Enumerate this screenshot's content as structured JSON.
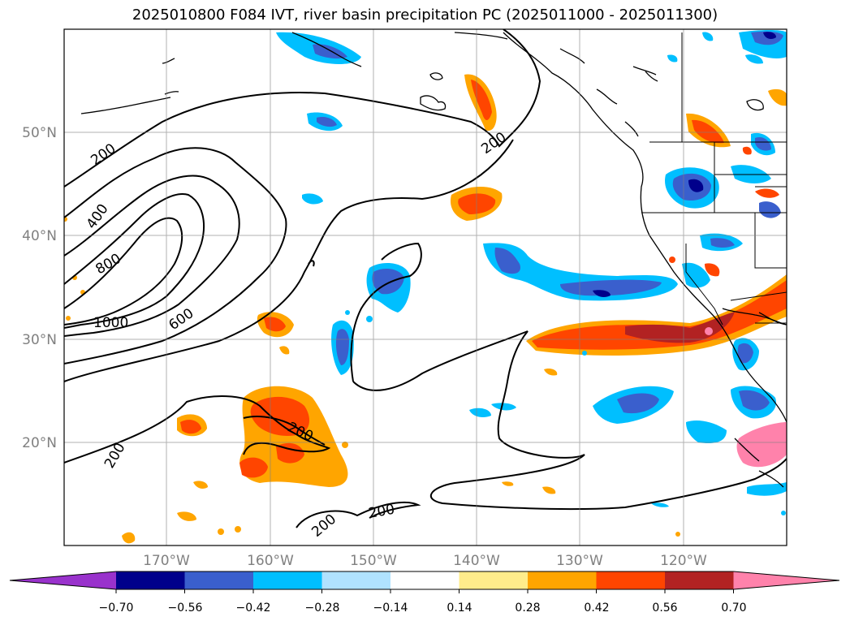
{
  "title": "2025010800 F084 IVT, river basin precipitation PC (2025011000 - 2025011300)",
  "map": {
    "lat_ticks": [
      "50°N",
      "40°N",
      "30°N",
      "20°N"
    ],
    "lon_ticks": [
      "170°W",
      "160°W",
      "150°W",
      "140°W",
      "130°W",
      "120°W"
    ],
    "contour_labels": [
      "200",
      "400",
      "800",
      "1000",
      "600",
      "200",
      "200",
      "200",
      "200",
      "200"
    ]
  },
  "colorbar": {
    "tick_labels": [
      "−0.70",
      "−0.56",
      "−0.42",
      "−0.28",
      "−0.14",
      "0.14",
      "0.28",
      "0.42",
      "0.56",
      "0.70"
    ],
    "colors": [
      "#9932cc",
      "#00008b",
      "#3a5fcd",
      "#00bfff",
      "#b0e2ff",
      "#ffffff",
      "#ffec8b",
      "#ffa500",
      "#ff4500",
      "#b22222",
      "#ff82ab"
    ]
  }
}
